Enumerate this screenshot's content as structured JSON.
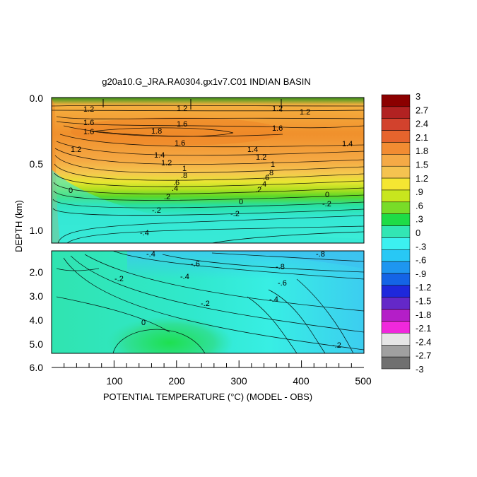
{
  "chart_data": {
    "type": "heatmap",
    "title": "g20a10.G_JRA.RA0304.gx1v7.C01 INDIAN BASIN",
    "xlabel": "POTENTIAL TEMPERATURE (°C) (MODEL - OBS)",
    "ylabel": "DEPTH (km)",
    "x_ticks": [
      "100",
      "200",
      "300",
      "400",
      "500"
    ],
    "x_range": [
      0,
      500
    ],
    "upper_panel": {
      "ylim": [
        0.0,
        1.1
      ],
      "y_ticks": [
        "0.0",
        "0.5",
        "1.0"
      ]
    },
    "lower_panel": {
      "ylim": [
        1.5,
        6.0
      ],
      "y_ticks": [
        "2.0",
        "3.0",
        "4.0",
        "5.0",
        "6.0"
      ]
    },
    "colorbar": {
      "range": [
        -3,
        3
      ],
      "labels": [
        "3",
        "2.7",
        "2.4",
        "2.1",
        "1.8",
        "1.5",
        "1.2",
        ".9",
        ".6",
        ".3",
        "0",
        "-.3",
        "-.6",
        "-.9",
        "-1.2",
        "-1.5",
        "-1.8",
        "-2.1",
        "-2.4",
        "-2.7",
        "-3"
      ],
      "colors": [
        "#8b0000",
        "#b22222",
        "#d2422d",
        "#e6642d",
        "#f28c32",
        "#f5aa46",
        "#f5c350",
        "#f5e632",
        "#c8e61e",
        "#78dc28",
        "#1edc46",
        "#32e6b4",
        "#3cf0f0",
        "#28c8f5",
        "#1e96f0",
        "#1464e6",
        "#1e28dc",
        "#6428c8",
        "#b41ec8",
        "#f028dc",
        "#e6e6e6",
        "#a0a0a0",
        "#707070"
      ]
    },
    "contour_labels_upper": [
      "1.2",
      "1.2",
      "1.2",
      "1.2",
      "1.6",
      "1.6",
      "1.6",
      "1.6",
      "1.8",
      "1.6",
      "1.4",
      "1.4",
      "1.2",
      "1.4",
      "1.2",
      "1.2",
      "1",
      "1",
      ".8",
      ".8",
      ".6",
      ".6",
      ".4",
      ".4",
      ".2",
      ".2",
      "0",
      "0",
      "0",
      "-.2",
      "-.2",
      "-.2",
      "-.4"
    ],
    "contour_labels_lower": [
      "-.4",
      "-.8",
      "-.6",
      "-.8",
      "-.4",
      "-.6",
      "-.2",
      "-.4",
      "-.2",
      "0",
      "-.2"
    ]
  }
}
